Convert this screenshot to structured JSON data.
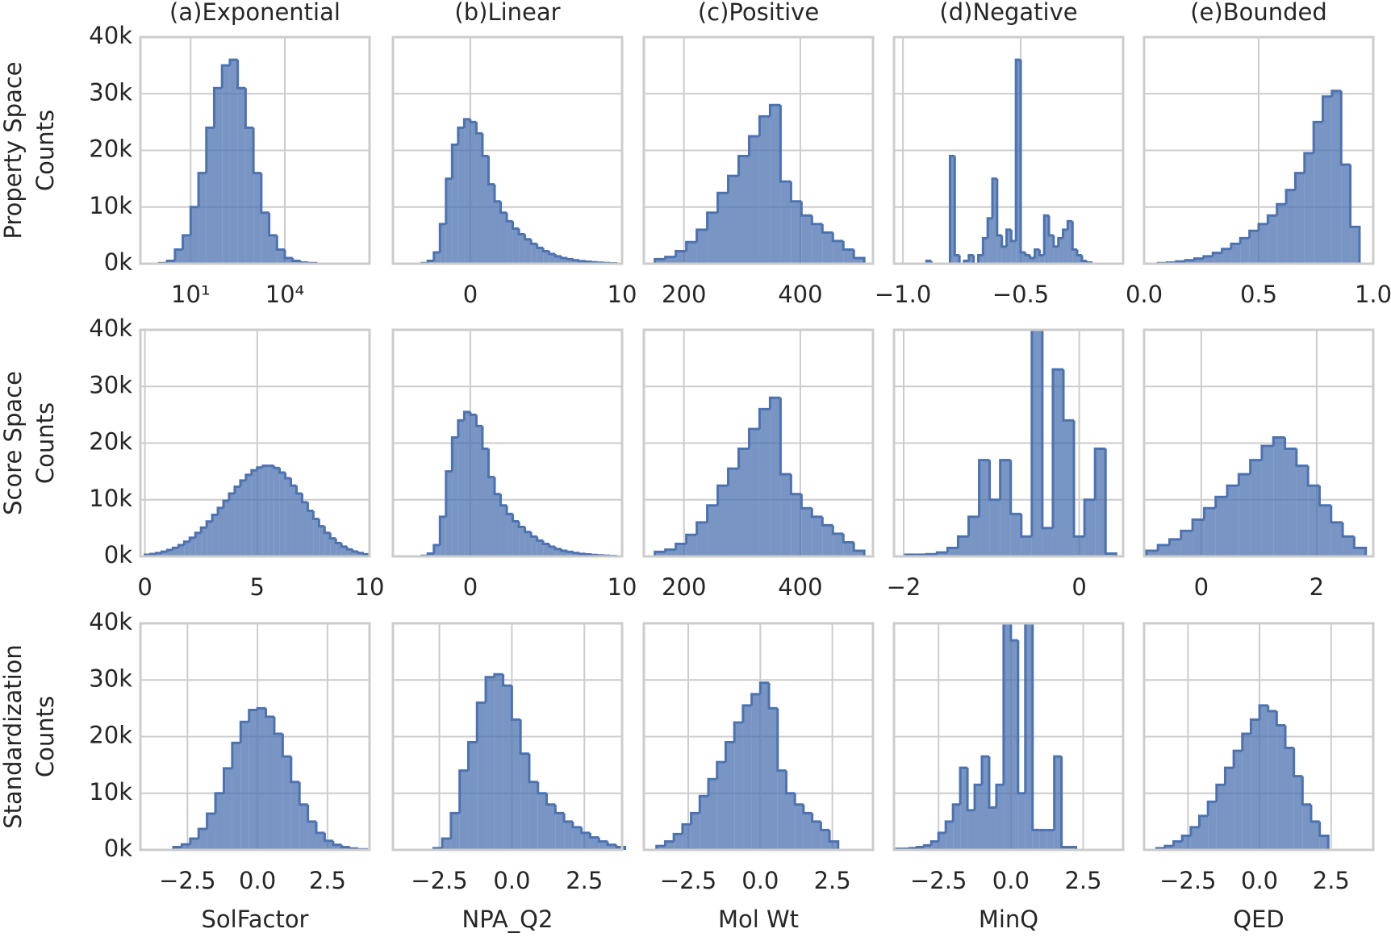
{
  "chart_data": [
    {
      "type": "histogram",
      "title": "(a)Exponential",
      "ylabel": [
        "Property Space",
        "Counts"
      ],
      "xscale": "log",
      "color": "#4c72b0",
      "grid": true,
      "bins": [
        1,
        1.778,
        3.162,
        5.623,
        10,
        17.78,
        31.62,
        56.23,
        100,
        177.8,
        316.2,
        562.3,
        1000,
        1778,
        3162,
        5623,
        10000,
        17783,
        31623,
        56234,
        100000
      ],
      "values": [
        100,
        500,
        2500,
        5000,
        10000,
        16000,
        24000,
        31000,
        35000,
        36000,
        31000,
        24000,
        16000,
        9000,
        5000,
        2500,
        1000,
        500,
        200,
        100
      ],
      "xlim": [
        0.25,
        5000000
      ],
      "xticks": [
        {
          "value": 10,
          "label": "10¹"
        },
        {
          "value": 10000,
          "label": "10⁴"
        }
      ],
      "ylim": [
        0,
        40000
      ],
      "yticks": [
        {
          "value": 0,
          "label": "0k"
        },
        {
          "value": 10000,
          "label": "10k"
        },
        {
          "value": 20000,
          "label": "20k"
        },
        {
          "value": 30000,
          "label": "30k"
        },
        {
          "value": 40000,
          "label": "40k"
        }
      ]
    },
    {
      "type": "histogram",
      "title": "(b)Linear",
      "color": "#4c72b0",
      "grid": true,
      "bins": [
        -3.2,
        -2.8,
        -2.4,
        -2.0,
        -1.6,
        -1.2,
        -0.8,
        -0.4,
        0,
        0.4,
        0.8,
        1.2,
        1.6,
        2.0,
        2.4,
        2.8,
        3.2,
        3.6,
        4.0,
        4.4,
        4.8,
        5.2,
        5.6,
        6.0,
        6.4,
        6.8,
        7.2,
        7.6,
        8.0,
        8.4,
        8.8,
        9.2,
        9.6
      ],
      "values": [
        100,
        500,
        2000,
        7000,
        15000,
        21000,
        24000,
        25500,
        25000,
        23000,
        19000,
        14000,
        11000,
        9000,
        7500,
        6200,
        5200,
        4300,
        3500,
        2800,
        2200,
        1700,
        1300,
        1000,
        800,
        600,
        450,
        350,
        250,
        180,
        120,
        80
      ],
      "xlim": [
        -5.1,
        10
      ],
      "xticks": [
        0,
        10
      ],
      "ylim": [
        0,
        40000
      ],
      "yticks": [
        0,
        10000,
        20000,
        30000,
        40000
      ]
    },
    {
      "type": "histogram",
      "title": "(c)Positive",
      "color": "#4c72b0",
      "grid": true,
      "bins": [
        150,
        168,
        186,
        204,
        222,
        240,
        258,
        276,
        294,
        312,
        330,
        348,
        366,
        384,
        402,
        420,
        438,
        456,
        474,
        492,
        510
      ],
      "values": [
        800,
        1200,
        2200,
        3800,
        6000,
        9000,
        12500,
        15500,
        19000,
        22500,
        26000,
        28000,
        14500,
        11000,
        8500,
        7000,
        5500,
        4000,
        2500,
        1000
      ],
      "xlim": [
        131,
        525
      ],
      "xticks": [
        200,
        400
      ],
      "ylim": [
        0,
        40000
      ],
      "yticks": [
        0,
        10000,
        20000,
        30000,
        40000
      ]
    },
    {
      "type": "histogram",
      "title": "(d)Negative",
      "color": "#4c72b0",
      "grid": true,
      "bins": [
        -0.92,
        -0.9,
        -0.88,
        -0.86,
        -0.84,
        -0.82,
        -0.8,
        -0.78,
        -0.76,
        -0.74,
        -0.72,
        -0.7,
        -0.68,
        -0.66,
        -0.64,
        -0.62,
        -0.6,
        -0.58,
        -0.56,
        -0.54,
        -0.52,
        -0.5,
        -0.48,
        -0.46,
        -0.44,
        -0.42,
        -0.4,
        -0.38,
        -0.36,
        -0.34,
        -0.32,
        -0.3,
        -0.28,
        -0.26,
        -0.24,
        -0.22,
        -0.2
      ],
      "values": [
        0,
        500,
        0,
        0,
        0,
        0,
        19000,
        1500,
        0,
        500,
        1500,
        0,
        1500,
        4500,
        8000,
        15000,
        5000,
        3000,
        6000,
        4000,
        36000,
        2000,
        1500,
        1000,
        2500,
        1500,
        8500,
        5000,
        3000,
        4500,
        6000,
        7500,
        2500,
        1500,
        500,
        200
      ],
      "xlim": [
        -1.038,
        -0.065
      ],
      "xticks": [
        {
          "value": -1.0,
          "label": "−1.0"
        },
        {
          "value": -0.5,
          "label": "−0.5"
        }
      ],
      "ylim": [
        0,
        40000
      ],
      "yticks": [
        0,
        10000,
        20000,
        30000,
        40000
      ]
    },
    {
      "type": "histogram",
      "title": "(e)Bounded",
      "color": "#4c72b0",
      "grid": true,
      "bins": [
        0.06,
        0.1,
        0.14,
        0.18,
        0.22,
        0.26,
        0.3,
        0.34,
        0.38,
        0.42,
        0.46,
        0.5,
        0.54,
        0.58,
        0.62,
        0.66,
        0.7,
        0.74,
        0.78,
        0.82,
        0.86,
        0.9,
        0.94
      ],
      "values": [
        100,
        200,
        400,
        600,
        900,
        1300,
        1900,
        2600,
        3500,
        4500,
        5800,
        7000,
        8500,
        10500,
        13000,
        16000,
        19500,
        25000,
        29500,
        30500,
        17500,
        6500
      ],
      "xlim": [
        0,
        1
      ],
      "xticks": [
        {
          "value": 0,
          "label": "0.0"
        },
        0.5,
        {
          "value": 1,
          "label": "1.0"
        }
      ],
      "ylim": [
        0,
        40000
      ],
      "yticks": [
        0,
        10000,
        20000,
        30000,
        40000
      ]
    },
    {
      "type": "histogram",
      "ylabel": [
        "Score Space",
        "Counts"
      ],
      "color": "#4c72b0",
      "grid": true,
      "bins": [
        0,
        0.25,
        0.5,
        0.75,
        1,
        1.25,
        1.5,
        1.75,
        2,
        2.25,
        2.5,
        2.75,
        3,
        3.25,
        3.5,
        3.75,
        4,
        4.25,
        4.5,
        4.75,
        5,
        5.25,
        5.5,
        5.75,
        6,
        6.25,
        6.5,
        6.75,
        7,
        7.25,
        7.5,
        7.75,
        8,
        8.25,
        8.5,
        8.75,
        9,
        9.25,
        9.5,
        9.75,
        10
      ],
      "values": [
        293,
        420,
        595,
        828,
        1130,
        1510,
        2000,
        2590,
        3300,
        4150,
        5090,
        6160,
        7330,
        8560,
        9830,
        11100,
        12300,
        13400,
        14400,
        15200,
        15700,
        16000,
        16000,
        15600,
        14800,
        13800,
        12500,
        11100,
        9550,
        8050,
        6620,
        5320,
        4170,
        3180,
        2370,
        1730,
        1230,
        850,
        580,
        380
      ],
      "xlim": [
        -0.2,
        10
      ],
      "xticks": [
        0,
        5,
        10
      ],
      "ylim": [
        0,
        40000
      ],
      "yticks": [
        {
          "value": 0,
          "label": "0k"
        },
        {
          "value": 10000,
          "label": "10k"
        },
        {
          "value": 20000,
          "label": "20k"
        },
        {
          "value": 30000,
          "label": "30k"
        },
        {
          "value": 40000,
          "label": "40k"
        }
      ]
    },
    {
      "type": "histogram",
      "color": "#4c72b0",
      "grid": true,
      "bins": [
        -3.2,
        -2.8,
        -2.4,
        -2.0,
        -1.6,
        -1.2,
        -0.8,
        -0.4,
        0,
        0.4,
        0.8,
        1.2,
        1.6,
        2.0,
        2.4,
        2.8,
        3.2,
        3.6,
        4.0,
        4.4,
        4.8,
        5.2,
        5.6,
        6.0,
        6.4,
        6.8,
        7.2,
        7.6,
        8.0,
        8.4,
        8.8,
        9.2,
        9.6
      ],
      "values": [
        100,
        500,
        2000,
        7000,
        15000,
        21000,
        24000,
        25500,
        25000,
        23000,
        19000,
        14000,
        11000,
        9000,
        7500,
        6200,
        5200,
        4300,
        3500,
        2800,
        2200,
        1700,
        1300,
        1000,
        800,
        600,
        450,
        350,
        250,
        180,
        120,
        80
      ],
      "xlim": [
        -5.1,
        10
      ],
      "xticks": [
        0,
        10
      ],
      "ylim": [
        0,
        40000
      ],
      "yticks": [
        0,
        10000,
        20000,
        30000,
        40000
      ]
    },
    {
      "type": "histogram",
      "color": "#4c72b0",
      "grid": true,
      "bins": [
        150,
        168,
        186,
        204,
        222,
        240,
        258,
        276,
        294,
        312,
        330,
        348,
        366,
        384,
        402,
        420,
        438,
        456,
        474,
        492,
        510
      ],
      "values": [
        800,
        1200,
        2200,
        3800,
        6000,
        9000,
        12500,
        15500,
        19000,
        22500,
        26000,
        28000,
        14500,
        11000,
        8500,
        7000,
        5500,
        4000,
        2500,
        1000
      ],
      "xlim": [
        131,
        525
      ],
      "xticks": [
        200,
        400
      ],
      "ylim": [
        0,
        40000
      ],
      "yticks": [
        0,
        10000,
        20000,
        30000,
        40000
      ]
    },
    {
      "type": "histogram",
      "color": "#4c72b0",
      "grid": true,
      "bins": [
        -1.98,
        -1.86,
        -1.74,
        -1.62,
        -1.5,
        -1.38,
        -1.26,
        -1.14,
        -1.02,
        -0.9,
        -0.78,
        -0.66,
        -0.54,
        -0.42,
        -0.3,
        -0.18,
        -0.06,
        0.06,
        0.18,
        0.3,
        0.42
      ],
      "values": [
        300,
        300,
        400,
        700,
        1500,
        3500,
        7000,
        17000,
        10000,
        17000,
        7500,
        3500,
        40000,
        5000,
        33000,
        24000,
        3500,
        10000,
        19000,
        500
      ],
      "xlim": [
        -2.11,
        0.5
      ],
      "xticks": [
        {
          "value": -2,
          "label": "−2"
        },
        0
      ],
      "ylim": [
        0,
        40000
      ],
      "yticks": [
        0,
        10000,
        20000,
        30000,
        40000
      ]
    },
    {
      "type": "histogram",
      "color": "#4c72b0",
      "grid": true,
      "bins": [
        -0.95,
        -0.75,
        -0.55,
        -0.35,
        -0.15,
        0.05,
        0.25,
        0.45,
        0.65,
        0.85,
        1.05,
        1.25,
        1.45,
        1.65,
        1.85,
        2.05,
        2.25,
        2.45,
        2.65,
        2.85
      ],
      "values": [
        1000,
        2000,
        3000,
        4500,
        6500,
        8500,
        10500,
        12500,
        14500,
        17000,
        19500,
        21000,
        19000,
        16000,
        12500,
        9000,
        6000,
        3500,
        1500
      ],
      "xlim": [
        -0.99,
        2.98
      ],
      "xticks": [
        0,
        2
      ],
      "ylim": [
        0,
        40000
      ],
      "yticks": [
        0,
        10000,
        20000,
        30000,
        40000
      ]
    },
    {
      "type": "histogram",
      "ylabel": [
        "Standardization",
        "Counts"
      ],
      "xlabel": "SolFactor",
      "color": "#4c72b0",
      "grid": true,
      "bins": [
        -3.0,
        -2.7,
        -2.4,
        -2.1,
        -1.8,
        -1.5,
        -1.2,
        -0.9,
        -0.6,
        -0.3,
        0,
        0.3,
        0.6,
        0.9,
        1.2,
        1.5,
        1.8,
        2.1,
        2.4,
        2.7,
        3.0,
        3.3,
        3.6,
        3.9
      ],
      "values": [
        500,
        970,
        2000,
        3700,
        6400,
        10000,
        14400,
        18900,
        22600,
        24700,
        25000,
        23500,
        20500,
        16500,
        12000,
        8000,
        5000,
        3000,
        1600,
        900,
        500,
        250,
        100
      ],
      "xlim": [
        -4.18,
        4.0
      ],
      "xticks": [
        {
          "value": -2.5,
          "label": "−2.5"
        },
        {
          "value": 0,
          "label": "0.0"
        },
        2.5
      ],
      "ylim": [
        0,
        40000
      ],
      "yticks": [
        {
          "value": 0,
          "label": "0k"
        },
        {
          "value": 10000,
          "label": "10k"
        },
        {
          "value": 20000,
          "label": "20k"
        },
        {
          "value": 30000,
          "label": "30k"
        },
        {
          "value": 40000,
          "label": "40k"
        }
      ]
    },
    {
      "type": "histogram",
      "xlabel": "NPA_Q2",
      "color": "#4c72b0",
      "grid": true,
      "bins": [
        -2.7,
        -2.4,
        -2.1,
        -1.8,
        -1.5,
        -1.2,
        -0.9,
        -0.6,
        -0.3,
        0,
        0.3,
        0.6,
        0.9,
        1.2,
        1.5,
        1.8,
        2.1,
        2.4,
        2.7,
        3.0,
        3.3,
        3.6,
        3.9
      ],
      "values": [
        300,
        2000,
        6500,
        14000,
        19000,
        26000,
        30500,
        31000,
        29000,
        23000,
        17000,
        12000,
        10000,
        8000,
        6500,
        5000,
        4000,
        3000,
        2200,
        1500,
        900,
        500
      ],
      "xlim": [
        -4.1,
        3.8
      ],
      "xticks": [
        {
          "value": -2.5,
          "label": "−2.5"
        },
        {
          "value": 0,
          "label": "0.0"
        },
        2.5
      ],
      "ylim": [
        0,
        40000
      ],
      "yticks": [
        0,
        10000,
        20000,
        30000,
        40000
      ]
    },
    {
      "type": "histogram",
      "xlabel": "Mol Wt",
      "color": "#4c72b0",
      "grid": true,
      "bins": [
        -3.6,
        -3.3,
        -3.0,
        -2.7,
        -2.4,
        -2.1,
        -1.8,
        -1.5,
        -1.2,
        -0.9,
        -0.6,
        -0.3,
        0,
        0.3,
        0.6,
        0.9,
        1.2,
        1.5,
        1.8,
        2.1,
        2.4,
        2.7
      ],
      "values": [
        700,
        1500,
        2800,
        4500,
        6500,
        9500,
        12500,
        15500,
        19000,
        22500,
        25500,
        27500,
        29500,
        25000,
        14000,
        10000,
        8000,
        6500,
        5000,
        3500,
        1500
      ],
      "xlim": [
        -4.04,
        3.91
      ],
      "xticks": [
        {
          "value": -2.5,
          "label": "−2.5"
        },
        {
          "value": 0,
          "label": "0.0"
        },
        2.5
      ],
      "ylim": [
        0,
        40000
      ],
      "yticks": [
        0,
        10000,
        20000,
        30000,
        40000
      ]
    },
    {
      "type": "histogram",
      "xlabel": "MinQ",
      "color": "#4c72b0",
      "grid": true,
      "bins": [
        -4.0,
        -3.75,
        -3.5,
        -3.25,
        -3.0,
        -2.75,
        -2.5,
        -2.25,
        -2.0,
        -1.75,
        -1.5,
        -1.25,
        -1.0,
        -0.75,
        -0.5,
        -0.25,
        0,
        0.25,
        0.5,
        0.75,
        1.0,
        1.25,
        1.5,
        1.75,
        2.0,
        2.25
      ],
      "values": [
        200,
        200,
        300,
        500,
        800,
        1500,
        3000,
        5000,
        8000,
        14500,
        7000,
        11500,
        16500,
        7500,
        11500,
        40000,
        37000,
        10000,
        40000,
        3500,
        3500,
        3500,
        16500,
        500,
        500
      ],
      "xlim": [
        -4.04,
        3.88
      ],
      "xticks": [
        {
          "value": -2.5,
          "label": "−2.5"
        },
        {
          "value": 0,
          "label": "0.0"
        },
        2.5
      ],
      "ylim": [
        0,
        40000
      ],
      "yticks": [
        0,
        10000,
        20000,
        30000,
        40000
      ]
    },
    {
      "type": "histogram",
      "xlabel": "QED",
      "color": "#4c72b0",
      "grid": true,
      "bins": [
        -3.6,
        -3.3,
        -3.0,
        -2.7,
        -2.4,
        -2.1,
        -1.8,
        -1.5,
        -1.2,
        -0.9,
        -0.6,
        -0.3,
        0,
        0.3,
        0.6,
        0.9,
        1.2,
        1.5,
        1.8,
        2.1,
        2.4
      ],
      "values": [
        300,
        700,
        1500,
        2500,
        4000,
        6000,
        8500,
        11500,
        14500,
        17500,
        20500,
        23000,
        25500,
        24500,
        22000,
        18000,
        13000,
        8000,
        5000,
        2500
      ],
      "xlim": [
        -4.03,
        3.97
      ],
      "xticks": [
        {
          "value": -2.5,
          "label": "−2.5"
        },
        {
          "value": 0,
          "label": "0.0"
        },
        2.5
      ],
      "ylim": [
        0,
        40000
      ],
      "yticks": [
        0,
        10000,
        20000,
        30000,
        40000
      ]
    }
  ]
}
